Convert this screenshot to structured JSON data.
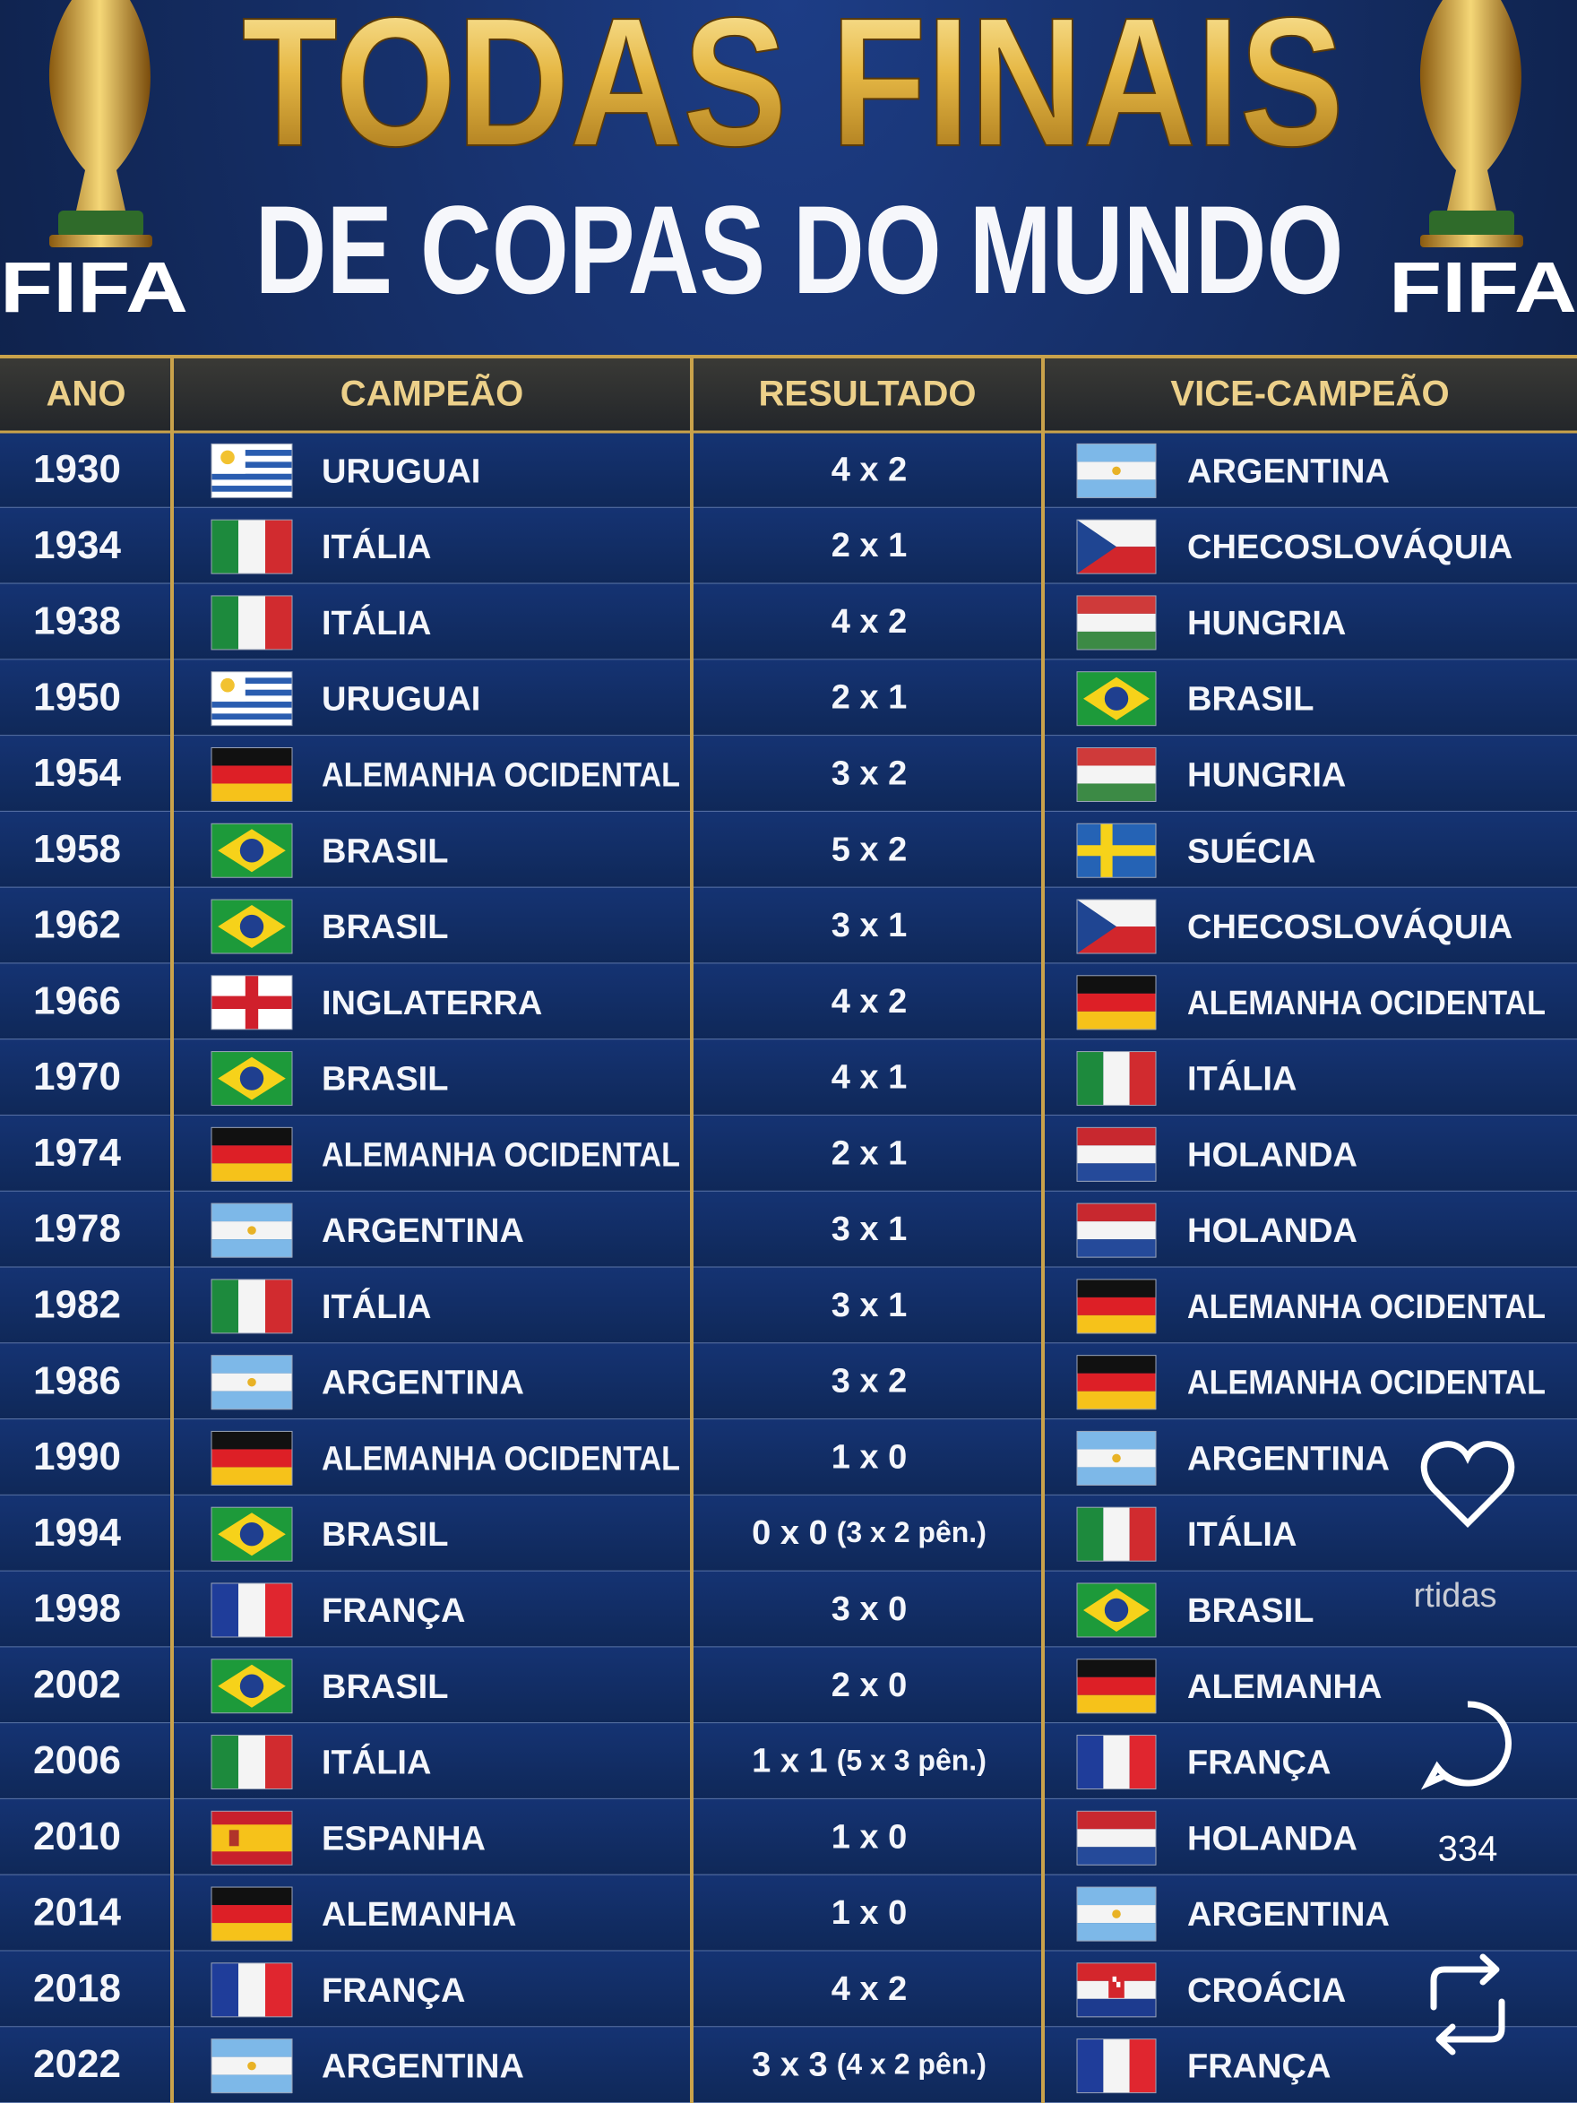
{
  "header": {
    "title": "TODAS FINAIS",
    "subtitle": "DE COPAS DO MUNDO",
    "logo_left": "FIFA",
    "logo_right": "FIFA"
  },
  "table": {
    "columns": [
      "ANO",
      "CAMPEÃO",
      "RESULTADO",
      "VICE-CAMPEÃO"
    ],
    "rows": [
      {
        "year": "1930",
        "champion": "URUGUAI",
        "score": "4 x 2",
        "runner_up": "ARGENTINA"
      },
      {
        "year": "1934",
        "champion": "ITÁLIA",
        "score": "2 x 1",
        "runner_up": "CHECOSLOVÁQUIA"
      },
      {
        "year": "1938",
        "champion": "ITÁLIA",
        "score": "4 x 2",
        "runner_up": "HUNGRIA"
      },
      {
        "year": "1950",
        "champion": "URUGUAI",
        "score": "2 x 1",
        "runner_up": "BRASIL"
      },
      {
        "year": "1954",
        "champion": "ALEMANHA OCIDENTAL",
        "score": "3 x 2",
        "runner_up": "HUNGRIA"
      },
      {
        "year": "1958",
        "champion": "BRASIL",
        "score": "5 x 2",
        "runner_up": "SUÉCIA"
      },
      {
        "year": "1962",
        "champion": "BRASIL",
        "score": "3 x 1",
        "runner_up": "CHECOSLOVÁQUIA"
      },
      {
        "year": "1966",
        "champion": "INGLATERRA",
        "score": "4 x 2",
        "runner_up": "ALEMANHA OCIDENTAL"
      },
      {
        "year": "1970",
        "champion": "BRASIL",
        "score": "4 x 1",
        "runner_up": "ITÁLIA"
      },
      {
        "year": "1974",
        "champion": "ALEMANHA OCIDENTAL",
        "score": "2 x 1",
        "runner_up": "HOLANDA"
      },
      {
        "year": "1978",
        "champion": "ARGENTINA",
        "score": "3 x 1",
        "runner_up": "HOLANDA"
      },
      {
        "year": "1982",
        "champion": "ITÁLIA",
        "score": "3 x 1",
        "runner_up": "ALEMANHA OCIDENTAL"
      },
      {
        "year": "1986",
        "champion": "ARGENTINA",
        "score": "3 x 2",
        "runner_up": "ALEMANHA OCIDENTAL"
      },
      {
        "year": "1990",
        "champion": "ALEMANHA OCIDENTAL",
        "score": "1 x 0",
        "runner_up": "ARGENTINA"
      },
      {
        "year": "1994",
        "champion": "BRASIL",
        "score": "0 x 0",
        "penalties": "(3 x 2 pên.)",
        "runner_up": "ITÁLIA"
      },
      {
        "year": "1998",
        "champion": "FRANÇA",
        "score": "3 x 0",
        "runner_up": "BRASIL"
      },
      {
        "year": "2002",
        "champion": "BRASIL",
        "score": "2 x 0",
        "runner_up": "ALEMANHA"
      },
      {
        "year": "2006",
        "champion": "ITÁLIA",
        "score": "1 x 1",
        "penalties": "(5 x 3 pên.)",
        "runner_up": "FRANÇA"
      },
      {
        "year": "2010",
        "champion": "ESPANHA",
        "score": "1 x 0",
        "runner_up": "HOLANDA"
      },
      {
        "year": "2014",
        "champion": "ALEMANHA",
        "score": "1 x 0",
        "runner_up": "ARGENTINA"
      },
      {
        "year": "2018",
        "champion": "FRANÇA",
        "score": "4 x 2",
        "runner_up": "CROÁCIA"
      },
      {
        "year": "2022",
        "champion": "ARGENTINA",
        "score": "3 x 3",
        "penalties": "(4 x 2 pên.)",
        "runner_up": "FRANÇA"
      }
    ]
  },
  "overlay": {
    "caption_fragment": "rtidas",
    "comments": "334"
  }
}
